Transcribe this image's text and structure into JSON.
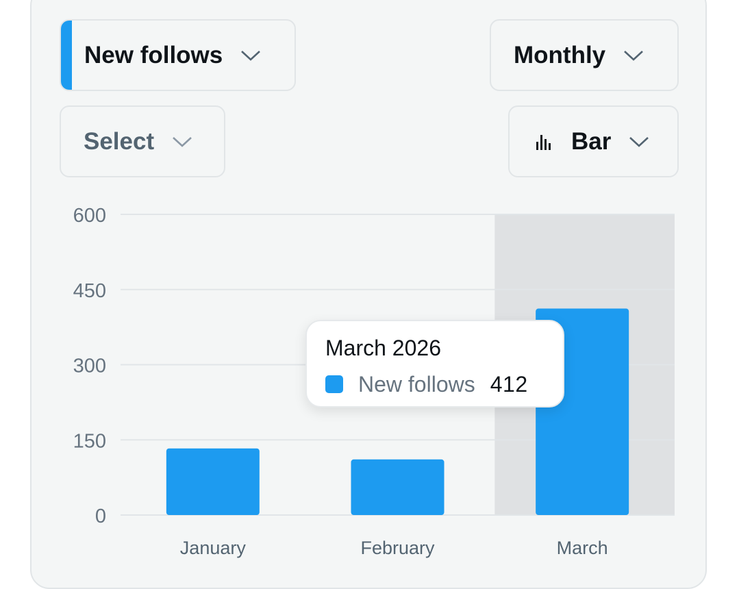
{
  "controls": {
    "metric": {
      "label": "New follows",
      "accent_color": "#1d9bf0",
      "icon": "chevron-down-icon"
    },
    "period": {
      "label": "Monthly",
      "icon": "chevron-down-icon"
    },
    "compare": {
      "label": "Select",
      "icon": "chevron-down-icon"
    },
    "chart_type": {
      "label": "Bar",
      "icon": "bar-chart-icon"
    }
  },
  "tooltip": {
    "title": "March 2026",
    "series_name": "New follows",
    "value": "412",
    "swatch_color": "#1d9bf0"
  },
  "chart_data": {
    "type": "bar",
    "categories": [
      "January",
      "February",
      "March"
    ],
    "series": [
      {
        "name": "New follows",
        "values": [
          133,
          111,
          412
        ],
        "color": "#1d9bf0"
      }
    ],
    "ylim": [
      0,
      600
    ],
    "yticks": [
      "0",
      "150",
      "300",
      "450",
      "600"
    ],
    "grid": true,
    "highlighted_category": "March",
    "highlight_color": "#dfe1e3"
  }
}
